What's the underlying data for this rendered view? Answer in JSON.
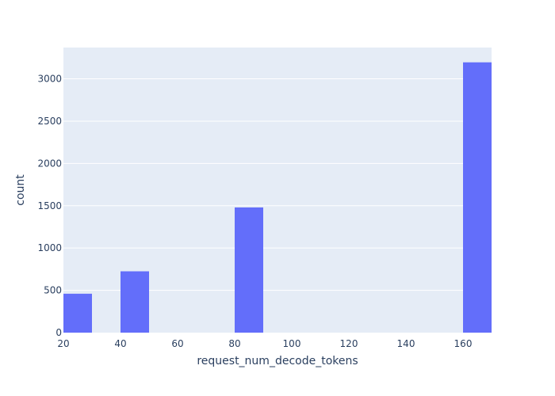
{
  "chart_data": {
    "type": "bar",
    "xlabel": "request_num_decode_tokens",
    "ylabel": "count",
    "xlim": [
      20,
      170
    ],
    "ylim": [
      0,
      3370
    ],
    "bin_width": 10,
    "bins": [
      {
        "x0": 20,
        "x1": 30,
        "count": 460
      },
      {
        "x0": 40,
        "x1": 50,
        "count": 725
      },
      {
        "x0": 80,
        "x1": 90,
        "count": 1480
      },
      {
        "x0": 160,
        "x1": 170,
        "count": 3195
      }
    ],
    "x_ticks": [
      20,
      40,
      60,
      80,
      100,
      120,
      140,
      160
    ],
    "y_ticks": [
      0,
      500,
      1000,
      1500,
      2000,
      2500,
      3000
    ],
    "grid": true,
    "colors": {
      "bar": "#636efa",
      "plot_bg": "#e5ecf6",
      "grid": "#ffffff",
      "text": "#2a3f5f"
    }
  }
}
